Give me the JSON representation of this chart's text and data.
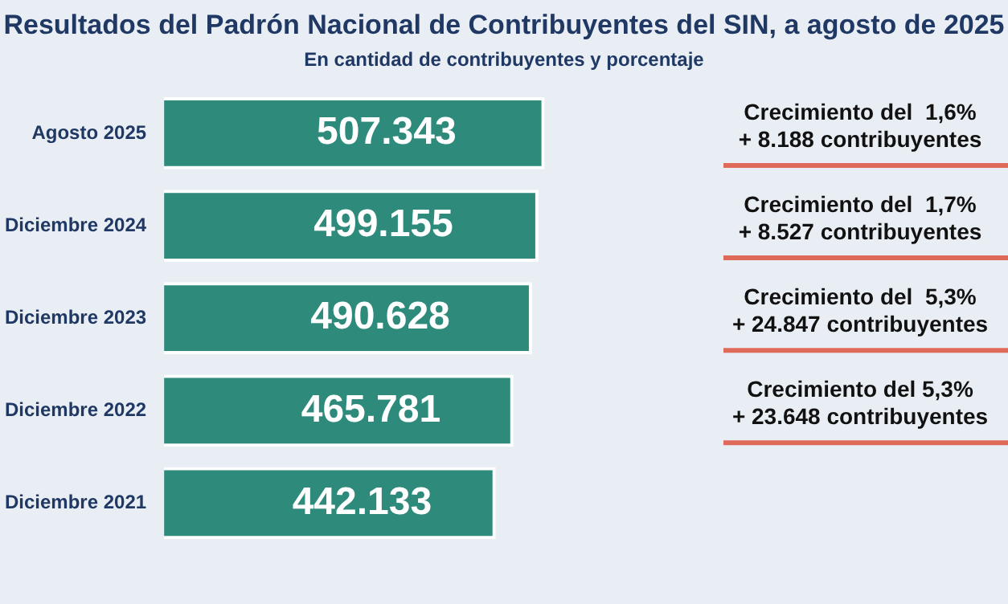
{
  "chart_data": {
    "type": "bar",
    "orientation": "horizontal",
    "title": "Resultados del Padrón Nacional de Contribuyentes del SIN, a agosto de 2025",
    "subtitle": "En cantidad de contribuyentes y porcentaje",
    "categories": [
      "Agosto 2025",
      "Diciembre 2024",
      "Diciembre 2023",
      "Diciembre 2022",
      "Diciembre 2021"
    ],
    "values": [
      507343,
      499155,
      490628,
      465781,
      442133
    ],
    "value_labels": [
      "507.343",
      "499.155",
      "490.628",
      "465.781",
      "442.133"
    ],
    "color": "#2e8b7c",
    "tick_labels": "y",
    "grid": false,
    "legend": false,
    "annotations": [
      "Crecimiento del  1,6%\n+ 8.188 contribuyentes",
      "Crecimiento del  1,7%\n+ 8.527 contribuyentes",
      "Crecimiento del  5,3%\n+ 24.847 contribuyentes",
      "Crecimiento del 5,3%\n+ 23.648 contribuyentes"
    ]
  }
}
